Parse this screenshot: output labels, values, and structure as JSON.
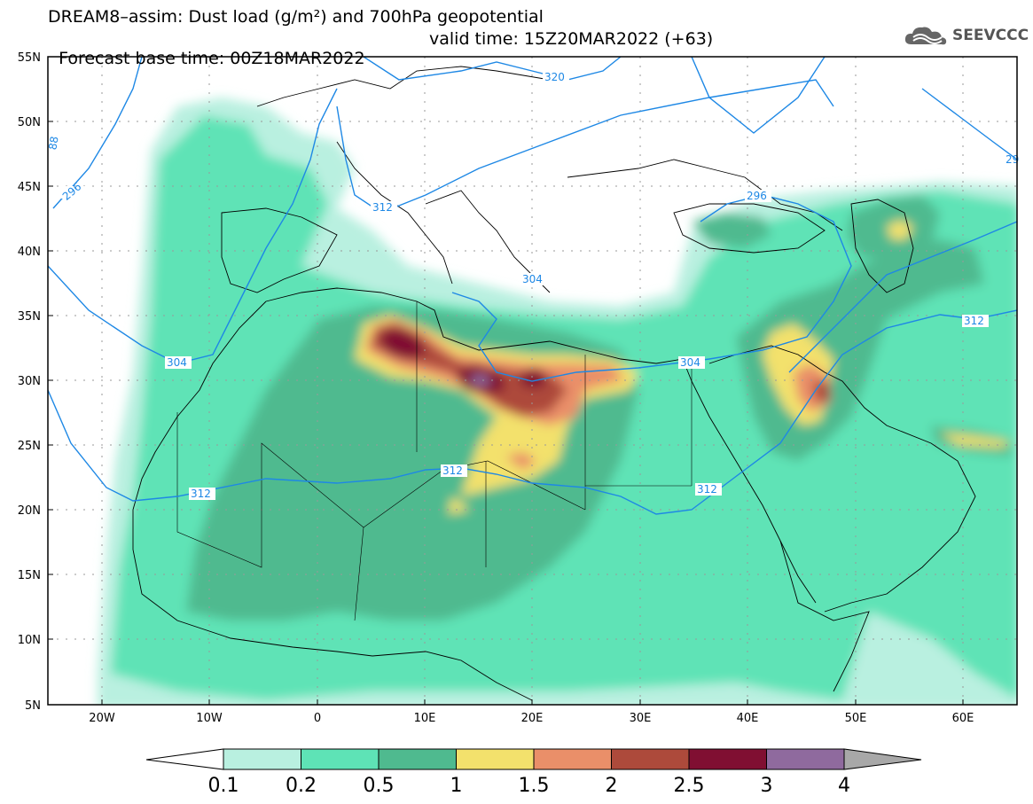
{
  "title": {
    "line1": "DREAM8–assim: Dust load (g/m²) and 700hPa geopotential",
    "base_time": "Forecast base time: 00Z18MAR2022",
    "valid_time": "valid time: 15Z20MAR2022 (+63)"
  },
  "logo": {
    "icon": "cloud-logo-icon",
    "text": "SEEVCCC"
  },
  "axes": {
    "lat_labels": [
      "55N",
      "50N",
      "45N",
      "40N",
      "35N",
      "30N",
      "25N",
      "20N",
      "15N",
      "10N",
      "5N"
    ],
    "lon_labels": [
      "20W",
      "10W",
      "0",
      "10E",
      "20E",
      "30E",
      "40E",
      "50E",
      "60E"
    ],
    "lat_range": [
      5,
      55
    ],
    "lon_range": [
      -25,
      65
    ]
  },
  "contours": {
    "labels": [
      {
        "text": "320"
      },
      {
        "text": "312"
      },
      {
        "text": "304"
      },
      {
        "text": "296"
      },
      {
        "text": "304"
      },
      {
        "text": "304"
      },
      {
        "text": "312"
      },
      {
        "text": "312"
      },
      {
        "text": "312"
      },
      {
        "text": "296"
      },
      {
        "text": "312"
      },
      {
        "text": "29"
      },
      {
        "text": "88"
      }
    ],
    "color": "#1e88e5"
  },
  "colorbar": {
    "labels": [
      "0.1",
      "0.2",
      "0.5",
      "1",
      "1.5",
      "2",
      "2.5",
      "3",
      "4"
    ],
    "colors": [
      "#b9f0e0",
      "#5ee3b6",
      "#4fba8f",
      "#f3e16c",
      "#ea8f69",
      "#ad4a3b",
      "#800f32",
      "#8f6a9e"
    ],
    "under_color": "#ffffff",
    "over_color": "#a8a8a8"
  }
}
